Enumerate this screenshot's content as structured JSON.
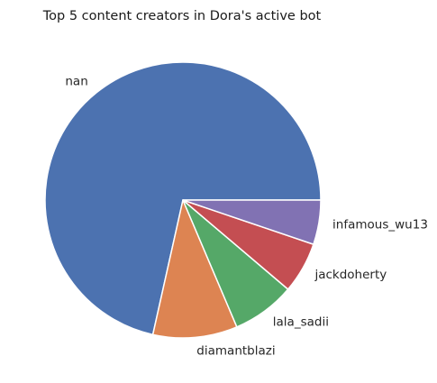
{
  "chart_data": {
    "type": "pie",
    "title": "Top 5 content creators in Dora's active bot",
    "start_angle_deg": 0,
    "direction": "counterclockwise",
    "slices": [
      {
        "label": "nan",
        "value": 71.5,
        "color": "#4c72b0"
      },
      {
        "label": "diamantblazi",
        "value": 9.9,
        "color": "#dd8452"
      },
      {
        "label": "lala_sadii",
        "value": 7.4,
        "color": "#55a868"
      },
      {
        "label": "jackdoherty",
        "value": 6.0,
        "color": "#c44e52"
      },
      {
        "label": "infamous_wu13",
        "value": 5.2,
        "color": "#8172b3"
      }
    ]
  }
}
